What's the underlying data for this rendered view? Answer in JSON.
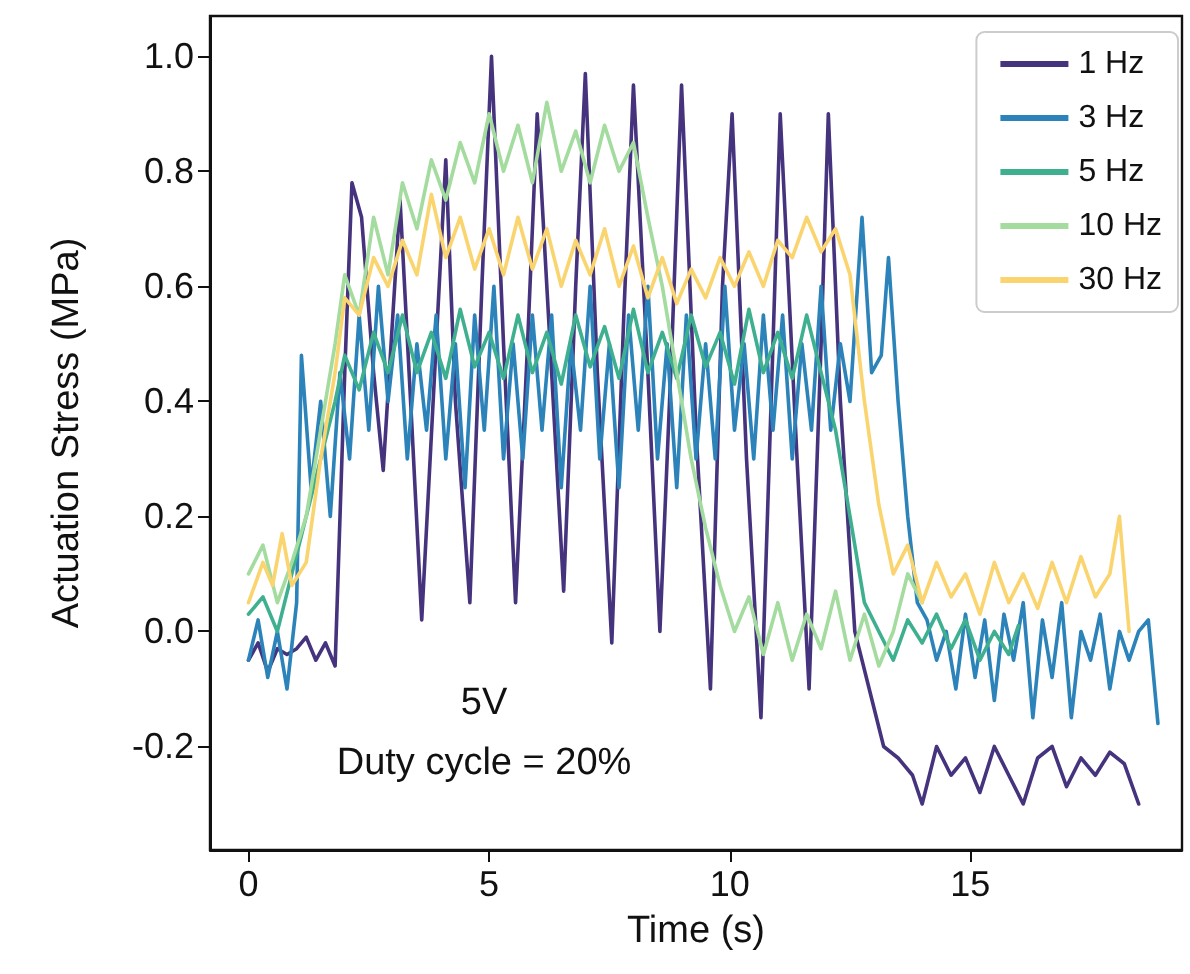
{
  "chart_data": {
    "type": "line",
    "xlabel": "Time (s)",
    "ylabel": "Actuation Stress (MPa)",
    "xlim": [
      -0.8,
      19.4
    ],
    "xticks": [
      0,
      5,
      10,
      15
    ],
    "ylim": [
      -0.38,
      1.07
    ],
    "yticks": [
      {
        "value": -0.2,
        "label": "-0.2"
      },
      {
        "value": 0,
        "label": "0.0"
      },
      {
        "value": 0.2,
        "label": "0.2"
      },
      {
        "value": 0.4,
        "label": "0.4"
      },
      {
        "value": 0.6,
        "label": "0.6"
      },
      {
        "value": 0.8,
        "label": "0.8"
      },
      {
        "value": 1.0,
        "label": "1.0"
      }
    ],
    "grid": false,
    "legend": "top right",
    "marker": "none",
    "line_style": "solid",
    "annotations": [
      "5V",
      "Duty cycle = 20%"
    ],
    "series": [
      {
        "name": "1 Hz",
        "color": "#46337e",
        "x": [
          0,
          0.2,
          0.4,
          0.6,
          0.8,
          1.0,
          1.2,
          1.4,
          1.6,
          1.8,
          2.0,
          2.15,
          2.35,
          2.6,
          2.8,
          3.0,
          3.15,
          3.4,
          3.6,
          3.9,
          4.1,
          4.3,
          4.6,
          4.85,
          5.05,
          5.3,
          5.55,
          5.8,
          6.0,
          6.3,
          6.55,
          6.8,
          7.0,
          7.25,
          7.55,
          7.8,
          8.0,
          8.3,
          8.55,
          8.8,
          9.0,
          9.3,
          9.6,
          9.85,
          10.05,
          10.35,
          10.65,
          10.9,
          11.05,
          11.4,
          11.65,
          11.9,
          12.05,
          12.3,
          12.6,
          12.9,
          13.2,
          13.5,
          13.8,
          14.0,
          14.3,
          14.6,
          14.9,
          15.2,
          15.5,
          15.8,
          16.1,
          16.4,
          16.7,
          17.0,
          17.3,
          17.6,
          17.9,
          18.2,
          18.5
        ],
        "values": [
          -0.05,
          -0.02,
          -0.07,
          -0.03,
          -0.04,
          -0.03,
          -0.01,
          -0.05,
          -0.02,
          -0.06,
          0.45,
          0.78,
          0.72,
          0.45,
          0.28,
          0.55,
          0.75,
          0.35,
          0.02,
          0.5,
          0.82,
          0.4,
          0.05,
          0.6,
          1.0,
          0.5,
          0.05,
          0.5,
          0.9,
          0.45,
          0.07,
          0.6,
          0.97,
          0.45,
          -0.02,
          0.55,
          0.95,
          0.45,
          0.0,
          0.5,
          0.95,
          0.35,
          -0.1,
          0.6,
          0.9,
          0.3,
          -0.15,
          0.5,
          0.9,
          0.3,
          -0.1,
          0.5,
          0.9,
          0.4,
          0.0,
          -0.1,
          -0.2,
          -0.22,
          -0.25,
          -0.3,
          -0.2,
          -0.25,
          -0.22,
          -0.28,
          -0.2,
          -0.25,
          -0.3,
          -0.22,
          -0.2,
          -0.27,
          -0.22,
          -0.25,
          -0.21,
          -0.23,
          -0.3
        ]
      },
      {
        "name": "3 Hz",
        "color": "#2b83ba",
        "x": [
          0,
          0.2,
          0.4,
          0.6,
          0.8,
          1.0,
          1.1,
          1.3,
          1.5,
          1.7,
          1.9,
          2.1,
          2.3,
          2.5,
          2.7,
          2.9,
          3.1,
          3.3,
          3.5,
          3.7,
          3.9,
          4.1,
          4.3,
          4.5,
          4.7,
          4.9,
          5.1,
          5.3,
          5.5,
          5.7,
          5.9,
          6.1,
          6.3,
          6.5,
          6.7,
          6.9,
          7.1,
          7.3,
          7.5,
          7.7,
          7.9,
          8.1,
          8.3,
          8.5,
          8.7,
          8.9,
          9.1,
          9.3,
          9.5,
          9.7,
          9.9,
          10.1,
          10.3,
          10.5,
          10.7,
          10.9,
          11.1,
          11.3,
          11.5,
          11.7,
          11.9,
          12.1,
          12.3,
          12.5,
          12.75,
          12.95,
          13.15,
          13.3,
          13.5,
          13.7,
          13.9,
          14.1,
          14.3,
          14.5,
          14.7,
          14.9,
          15.1,
          15.3,
          15.5,
          15.7,
          15.9,
          16.1,
          16.3,
          16.5,
          16.7,
          16.9,
          17.1,
          17.3,
          17.5,
          17.7,
          17.9,
          18.1,
          18.3,
          18.5,
          18.7,
          18.9
        ],
        "values": [
          -0.05,
          0.02,
          -0.08,
          0.0,
          -0.1,
          0.05,
          0.48,
          0.25,
          0.4,
          0.2,
          0.45,
          0.3,
          0.55,
          0.35,
          0.6,
          0.4,
          0.55,
          0.3,
          0.5,
          0.35,
          0.55,
          0.3,
          0.5,
          0.25,
          0.55,
          0.35,
          0.6,
          0.3,
          0.5,
          0.3,
          0.55,
          0.35,
          0.55,
          0.25,
          0.5,
          0.35,
          0.6,
          0.3,
          0.5,
          0.25,
          0.55,
          0.35,
          0.6,
          0.3,
          0.5,
          0.25,
          0.55,
          0.3,
          0.5,
          0.3,
          0.6,
          0.35,
          0.5,
          0.3,
          0.55,
          0.35,
          0.55,
          0.3,
          0.5,
          0.35,
          0.6,
          0.35,
          0.5,
          0.4,
          0.72,
          0.45,
          0.48,
          0.65,
          0.4,
          0.2,
          0.05,
          0.02,
          -0.05,
          0.0,
          -0.1,
          0.03,
          -0.08,
          0.02,
          -0.12,
          0.03,
          -0.05,
          0.05,
          -0.15,
          0.02,
          -0.08,
          0.05,
          -0.15,
          0.0,
          -0.05,
          0.03,
          -0.1,
          0.0,
          -0.05,
          0.0,
          0.02,
          -0.16
        ]
      },
      {
        "name": "5 Hz",
        "color": "#3fb08f",
        "x": [
          0,
          0.3,
          0.6,
          0.9,
          1.2,
          1.5,
          1.8,
          2.0,
          2.3,
          2.6,
          2.9,
          3.2,
          3.5,
          3.8,
          4.1,
          4.4,
          4.7,
          5.0,
          5.3,
          5.6,
          5.9,
          6.2,
          6.5,
          6.8,
          7.1,
          7.4,
          7.7,
          8.0,
          8.3,
          8.6,
          8.9,
          9.2,
          9.5,
          9.8,
          10.1,
          10.4,
          10.7,
          11.0,
          11.3,
          11.6,
          11.9,
          12.2,
          12.5,
          12.8,
          13.1,
          13.4,
          13.7,
          14.0,
          14.3,
          14.6,
          14.9,
          15.2,
          15.5,
          15.8,
          16.0
        ],
        "values": [
          0.03,
          0.06,
          0.0,
          0.1,
          0.2,
          0.3,
          0.4,
          0.48,
          0.42,
          0.52,
          0.45,
          0.55,
          0.45,
          0.52,
          0.44,
          0.56,
          0.46,
          0.52,
          0.44,
          0.55,
          0.45,
          0.52,
          0.43,
          0.55,
          0.46,
          0.53,
          0.44,
          0.56,
          0.45,
          0.52,
          0.44,
          0.55,
          0.46,
          0.52,
          0.43,
          0.56,
          0.45,
          0.52,
          0.44,
          0.55,
          0.45,
          0.35,
          0.2,
          0.05,
          0.0,
          -0.05,
          0.02,
          -0.02,
          0.03,
          -0.03,
          0.02,
          -0.05,
          0.0,
          -0.04,
          0.01
        ]
      },
      {
        "name": "10 Hz",
        "color": "#a3dc9e",
        "x": [
          0,
          0.3,
          0.6,
          0.9,
          1.2,
          1.5,
          1.8,
          2.0,
          2.3,
          2.6,
          2.9,
          3.2,
          3.5,
          3.8,
          4.1,
          4.4,
          4.7,
          5.0,
          5.3,
          5.6,
          5.9,
          6.2,
          6.5,
          6.8,
          7.1,
          7.4,
          7.7,
          8.0,
          8.3,
          8.6,
          8.9,
          9.2,
          9.5,
          9.8,
          10.1,
          10.4,
          10.7,
          11.0,
          11.3,
          11.6,
          11.9,
          12.2,
          12.5,
          12.8,
          13.1,
          13.4,
          13.7,
          14.0
        ],
        "values": [
          0.1,
          0.15,
          0.05,
          0.12,
          0.2,
          0.35,
          0.5,
          0.62,
          0.55,
          0.72,
          0.62,
          0.78,
          0.7,
          0.82,
          0.75,
          0.85,
          0.78,
          0.9,
          0.8,
          0.88,
          0.78,
          0.92,
          0.8,
          0.87,
          0.78,
          0.88,
          0.8,
          0.85,
          0.72,
          0.6,
          0.45,
          0.3,
          0.18,
          0.08,
          0.0,
          0.06,
          -0.04,
          0.05,
          -0.05,
          0.03,
          -0.03,
          0.07,
          -0.05,
          0.03,
          -0.06,
          0.0,
          0.1,
          0.05
        ]
      },
      {
        "name": "30 Hz",
        "color": "#fad46e",
        "x": [
          0,
          0.3,
          0.5,
          0.7,
          0.9,
          1.2,
          1.5,
          1.8,
          2.0,
          2.3,
          2.6,
          2.9,
          3.2,
          3.5,
          3.8,
          4.1,
          4.4,
          4.7,
          5.0,
          5.3,
          5.6,
          5.9,
          6.2,
          6.5,
          6.8,
          7.1,
          7.4,
          7.7,
          8.0,
          8.3,
          8.6,
          8.9,
          9.2,
          9.5,
          9.8,
          10.1,
          10.4,
          10.7,
          11.0,
          11.3,
          11.6,
          11.9,
          12.2,
          12.5,
          12.8,
          13.1,
          13.4,
          13.7,
          14.0,
          14.3,
          14.6,
          14.9,
          15.2,
          15.5,
          15.8,
          16.1,
          16.4,
          16.7,
          17.0,
          17.3,
          17.6,
          17.9,
          18.1,
          18.3
        ],
        "values": [
          0.05,
          0.12,
          0.08,
          0.17,
          0.08,
          0.12,
          0.3,
          0.45,
          0.58,
          0.55,
          0.65,
          0.6,
          0.68,
          0.62,
          0.76,
          0.65,
          0.72,
          0.63,
          0.7,
          0.62,
          0.72,
          0.63,
          0.7,
          0.6,
          0.68,
          0.62,
          0.7,
          0.6,
          0.67,
          0.58,
          0.65,
          0.57,
          0.63,
          0.58,
          0.65,
          0.6,
          0.66,
          0.6,
          0.68,
          0.65,
          0.72,
          0.66,
          0.7,
          0.62,
          0.4,
          0.22,
          0.1,
          0.15,
          0.05,
          0.12,
          0.06,
          0.1,
          0.03,
          0.12,
          0.05,
          0.1,
          0.04,
          0.12,
          0.05,
          0.13,
          0.06,
          0.1,
          0.2,
          0.0
        ]
      }
    ]
  }
}
